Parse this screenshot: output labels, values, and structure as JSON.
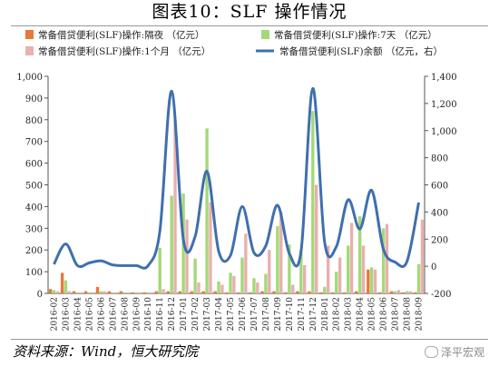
{
  "title": "图表10：SLF 操作情况",
  "source": "资料来源：Wind，恒大研究院",
  "watermark": "泽平宏观",
  "colors": {
    "overnight": "#e6793a",
    "seven_day": "#a3d977",
    "one_month": "#e8b0ae",
    "balance": "#3f6fae",
    "axis": "#555555",
    "grid": "#ffffff"
  },
  "chart_data": {
    "type": "bar",
    "categories": [
      "2016-02",
      "2016-03",
      "2016-04",
      "2016-05",
      "2016-06",
      "2016-07",
      "2016-08",
      "2016-09",
      "2016-10",
      "2016-11",
      "2016-12",
      "2017-01",
      "2017-02",
      "2017-03",
      "2017-04",
      "2017-05",
      "2017-06",
      "2017-07",
      "2017-08",
      "2017-09",
      "2017-10",
      "2017-11",
      "2017-12",
      "2018-01",
      "2018-02",
      "2018-03",
      "2018-04",
      "2018-05",
      "2018-06",
      "2018-07",
      "2018-08",
      "2018-09"
    ],
    "series": [
      {
        "name": "常备借贷便利(SLF)操作:隔夜 （亿元）",
        "kind": "bar",
        "axis": "left",
        "values": [
          [
            20,
            95,
            10,
            10,
            30,
            10,
            10,
            5,
            5,
            10,
            10,
            10,
            10,
            10,
            10,
            5,
            5,
            5,
            10,
            10,
            5,
            10,
            10,
            5,
            5,
            5,
            10,
            110,
            5,
            10,
            5,
            5
          ],
          [
            20,
            95,
            10,
            10,
            30,
            10,
            10,
            5,
            5,
            10,
            10,
            10,
            10,
            10,
            10,
            5,
            5,
            5,
            10,
            10,
            5,
            10,
            10,
            5,
            5,
            5,
            10,
            110,
            5,
            10,
            5,
            5
          ],
          [
            20,
            95,
            10,
            10,
            30,
            10,
            10,
            5,
            5,
            10,
            10,
            10,
            10,
            10,
            10,
            5,
            5,
            5,
            10,
            10,
            5,
            10,
            10,
            5,
            5,
            5,
            10,
            110,
            5,
            10,
            5,
            5
          ]
        ]
      },
      {
        "name": "常备借贷便利(SLF)操作:7天 （亿元）",
        "kind": "bar",
        "axis": "left",
        "values": [
          [
            15,
            60,
            5,
            5,
            10,
            5,
            5,
            5,
            5,
            210,
            450,
            460,
            160,
            760,
            55,
            95,
            165,
            70,
            90,
            310,
            225,
            200,
            840,
            30,
            100,
            220,
            355,
            120,
            300,
            10,
            10,
            135
          ]
        ]
      },
      {
        "name": "常备借贷便利(SLF)操作:1个月 （亿元）",
        "kind": "bar",
        "axis": "left",
        "values": [
          [
            10,
            10,
            5,
            5,
            10,
            5,
            5,
            5,
            5,
            20,
            800,
            340,
            50,
            420,
            40,
            80,
            275,
            50,
            200,
            375,
            40,
            130,
            500,
            220,
            165,
            325,
            220,
            110,
            320,
            15,
            10,
            340
          ]
        ]
      }
    ],
    "ylim": [
      0,
      1000
    ],
    "yticks": [
      "0",
      "100",
      "200",
      "300",
      "400",
      "500",
      "600",
      "700",
      "800",
      "900",
      "1,000"
    ],
    "y2lim": [
      -200,
      1400
    ],
    "y2ticks": [
      "-200",
      "0",
      "200",
      "400",
      "600",
      "800",
      "1,000",
      "1,200",
      "1,400"
    ],
    "xlabel": "",
    "ylabel": "",
    "legend_position": "top"
  }
}
